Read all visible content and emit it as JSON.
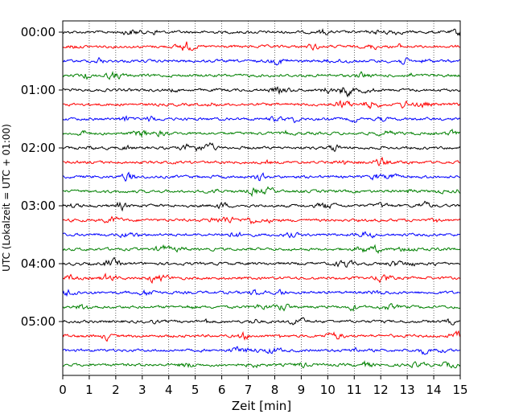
{
  "chart_data": {
    "type": "line",
    "title": "",
    "xlabel": "Zeit  [min]",
    "ylabel": "UTC (Lokalzeit = UTC + 01:00)",
    "xlim": [
      0,
      15
    ],
    "x_ticks": [
      "0",
      "1",
      "2",
      "3",
      "4",
      "5",
      "6",
      "7",
      "8",
      "9",
      "10",
      "11",
      "12",
      "13",
      "14",
      "15"
    ],
    "y_tick_labels": [
      "00:00",
      "01:00",
      "02:00",
      "03:00",
      "04:00",
      "05:00"
    ],
    "trace_interval_min": 15,
    "trace_count": 24,
    "trace_colors": [
      "#000000",
      "#ff0000",
      "#0000ff",
      "#008000"
    ],
    "vertical_grid": "dotted",
    "series": [
      {
        "start": "00:00"
      },
      {
        "start": "00:15"
      },
      {
        "start": "00:30"
      },
      {
        "start": "00:45"
      },
      {
        "start": "01:00"
      },
      {
        "start": "01:15"
      },
      {
        "start": "01:30"
      },
      {
        "start": "01:45"
      },
      {
        "start": "02:00"
      },
      {
        "start": "02:15"
      },
      {
        "start": "02:30"
      },
      {
        "start": "02:45"
      },
      {
        "start": "03:00"
      },
      {
        "start": "03:15"
      },
      {
        "start": "03:30"
      },
      {
        "start": "03:45"
      },
      {
        "start": "04:00"
      },
      {
        "start": "04:15"
      },
      {
        "start": "04:30"
      },
      {
        "start": "04:45"
      },
      {
        "start": "05:00"
      },
      {
        "start": "05:15"
      },
      {
        "start": "05:30"
      },
      {
        "start": "05:45"
      }
    ]
  }
}
